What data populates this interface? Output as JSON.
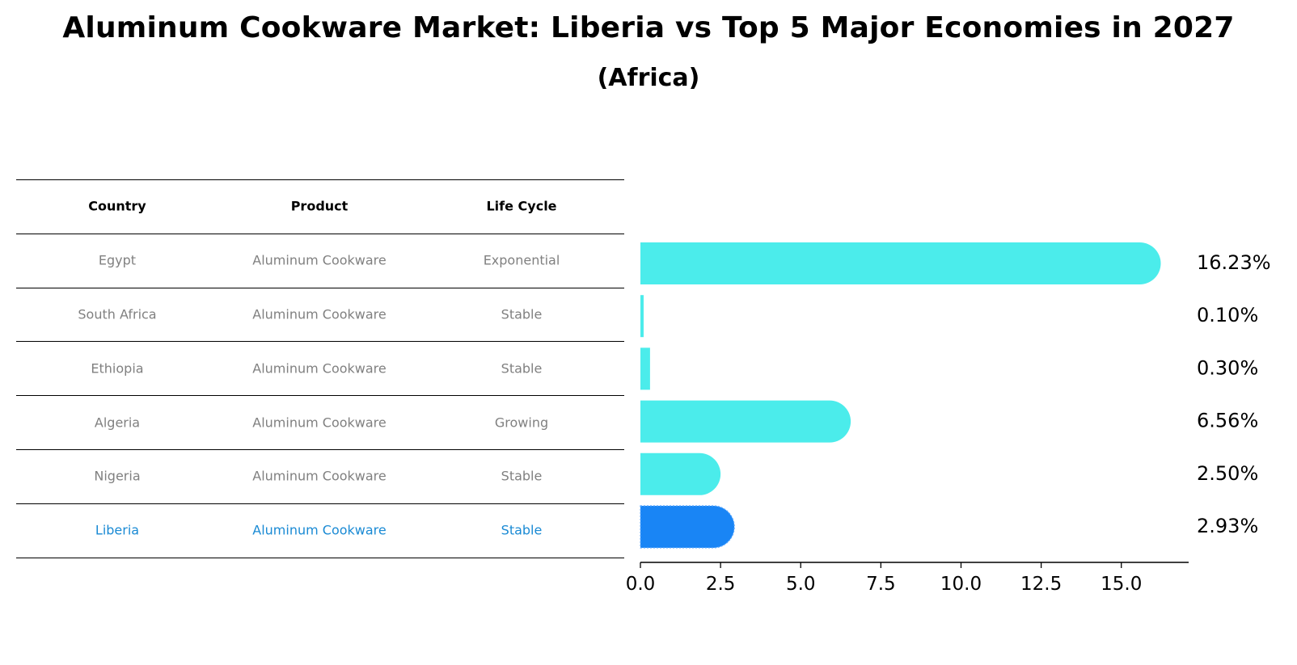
{
  "title": "Aluminum Cookware Market: Liberia vs Top 5 Major Economies in 2027",
  "subtitle": "(Africa)",
  "table": {
    "headers": [
      "Country",
      "Product",
      "Life Cycle"
    ],
    "rows": [
      [
        "Egypt",
        "Aluminum Cookware",
        "Exponential"
      ],
      [
        "South Africa",
        "Aluminum Cookware",
        "Stable"
      ],
      [
        "Ethiopia",
        "Aluminum Cookware",
        "Stable"
      ],
      [
        "Algeria",
        "Aluminum Cookware",
        "Growing"
      ],
      [
        "Nigeria",
        "Aluminum Cookware",
        "Stable"
      ],
      [
        "Liberia",
        "Aluminum Cookware",
        "Stable"
      ]
    ],
    "highlight_row": 5
  },
  "colors": {
    "bar": "#4beceb",
    "highlight_bar": "#1985f5",
    "highlight_text": "#1a8ad4",
    "muted_text": "#808080"
  },
  "chart_data": {
    "type": "bar",
    "orientation": "horizontal",
    "title": "Aluminum Cookware Market: Liberia vs Top 5 Major Economies in 2027",
    "subtitle": "(Africa)",
    "categories": [
      "Egypt",
      "South Africa",
      "Ethiopia",
      "Algeria",
      "Nigeria",
      "Liberia"
    ],
    "values": [
      16.23,
      0.1,
      0.3,
      6.56,
      2.5,
      2.93
    ],
    "value_labels": [
      "16.23%",
      "0.10%",
      "0.30%",
      "6.56%",
      "2.50%",
      "2.93%"
    ],
    "highlight": "Liberia",
    "xlim": [
      0,
      17.1
    ],
    "xticks": [
      0.0,
      2.5,
      5.0,
      7.5,
      10.0,
      12.5,
      15.0
    ],
    "xtick_labels": [
      "0.0",
      "2.5",
      "5.0",
      "7.5",
      "10.0",
      "12.5",
      "15.0"
    ],
    "xlabel": "",
    "ylabel": "",
    "grid": false
  }
}
